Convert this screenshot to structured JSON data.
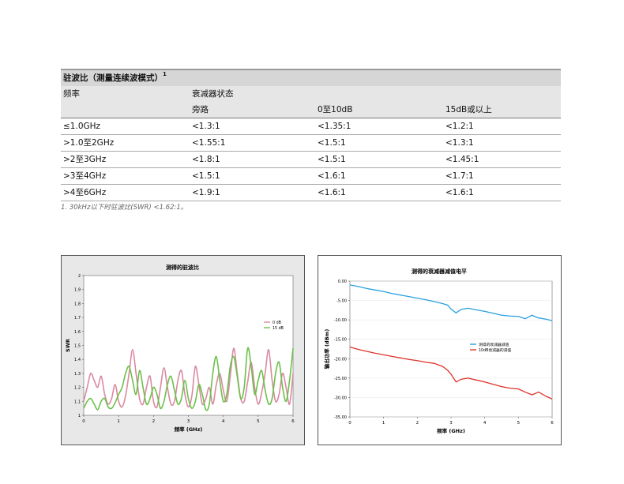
{
  "table": {
    "title": "驻波比（测量连续波模式）",
    "title_sup": "1",
    "header": [
      "频率",
      "衰减器状态",
      "",
      ""
    ],
    "subheader": [
      "",
      "旁路",
      "0至10dB",
      "15dB或以上"
    ],
    "rows": [
      [
        "≤1.0GHz",
        "<1.3:1",
        "<1.35:1",
        "<1.2:1"
      ],
      [
        ">1.0至2GHz",
        "<1.55:1",
        "<1.5:1",
        "<1.3:1"
      ],
      [
        ">2至3GHz",
        "<1.8:1",
        "<1.5:1",
        "<1.45:1"
      ],
      [
        ">3至4GHz",
        "<1.5:1",
        "<1.6:1",
        "<1.7:1"
      ],
      [
        ">4至6GHz",
        "<1.9:1",
        "<1.6:1",
        "<1.6:1"
      ]
    ],
    "footnote": "1. 30kHz以下时驻波比(SWR) <1.62:1。"
  },
  "chart_data": [
    {
      "type": "line",
      "title": "测得的驻波比",
      "xlabel": "频率 (GHz)",
      "ylabel": "SWR",
      "xlim": [
        0,
        6
      ],
      "ylim": [
        1,
        2
      ],
      "xticks": [
        "0",
        "1",
        "2",
        "3",
        "4",
        "5",
        "6"
      ],
      "yticks": [
        "1",
        "1.1",
        "1.2",
        "1.3",
        "1.4",
        "1.5",
        "1.6",
        "1.7",
        "1.8",
        "1.9",
        "2"
      ],
      "legend": "right",
      "series": [
        {
          "name": "0 dB",
          "color": "#d98aa0",
          "x": [
            0,
            0.1,
            0.2,
            0.3,
            0.4,
            0.5,
            0.6,
            0.7,
            0.8,
            0.9,
            1.0,
            1.1,
            1.2,
            1.3,
            1.4,
            1.5,
            1.6,
            1.7,
            1.8,
            1.9,
            2.0,
            2.1,
            2.2,
            2.3,
            2.4,
            2.5,
            2.6,
            2.7,
            2.8,
            2.9,
            3.0,
            3.1,
            3.2,
            3.3,
            3.4,
            3.5,
            3.6,
            3.7,
            3.8,
            3.9,
            4.0,
            4.1,
            4.2,
            4.3,
            4.4,
            4.5,
            4.6,
            4.7,
            4.8,
            4.9,
            5.0,
            5.1,
            5.2,
            5.3,
            5.4,
            5.5,
            5.6,
            5.7,
            5.8,
            5.9,
            6.0
          ],
          "y": [
            1.1,
            1.2,
            1.3,
            1.25,
            1.2,
            1.28,
            1.15,
            1.08,
            1.12,
            1.22,
            1.1,
            1.06,
            1.14,
            1.3,
            1.47,
            1.3,
            1.12,
            1.08,
            1.2,
            1.28,
            1.1,
            1.06,
            1.2,
            1.34,
            1.2,
            1.08,
            1.1,
            1.25,
            1.32,
            1.15,
            1.06,
            1.14,
            1.35,
            1.22,
            1.08,
            1.12,
            1.2,
            1.08,
            1.22,
            1.3,
            1.18,
            1.1,
            1.28,
            1.48,
            1.3,
            1.12,
            1.1,
            1.24,
            1.38,
            1.2,
            1.08,
            1.16,
            1.3,
            1.47,
            1.25,
            1.1,
            1.15,
            1.3,
            1.2,
            1.08,
            1.3
          ]
        },
        {
          "name": "15 dB",
          "color": "#6cc04a",
          "x": [
            0,
            0.1,
            0.2,
            0.3,
            0.4,
            0.5,
            0.6,
            0.7,
            0.8,
            0.9,
            1.0,
            1.1,
            1.2,
            1.3,
            1.4,
            1.5,
            1.6,
            1.7,
            1.8,
            1.9,
            2.0,
            2.1,
            2.2,
            2.3,
            2.4,
            2.5,
            2.6,
            2.7,
            2.8,
            2.9,
            3.0,
            3.1,
            3.2,
            3.3,
            3.4,
            3.5,
            3.6,
            3.7,
            3.8,
            3.9,
            4.0,
            4.1,
            4.2,
            4.3,
            4.4,
            4.5,
            4.6,
            4.7,
            4.8,
            4.9,
            5.0,
            5.1,
            5.2,
            5.3,
            5.4,
            5.5,
            5.6,
            5.7,
            5.8,
            5.9,
            6.0
          ],
          "y": [
            1.05,
            1.1,
            1.12,
            1.08,
            1.04,
            1.1,
            1.12,
            1.06,
            1.05,
            1.09,
            1.15,
            1.2,
            1.3,
            1.35,
            1.25,
            1.15,
            1.32,
            1.2,
            1.08,
            1.12,
            1.2,
            1.15,
            1.05,
            1.1,
            1.22,
            1.28,
            1.18,
            1.08,
            1.12,
            1.25,
            1.12,
            1.05,
            1.1,
            1.22,
            1.15,
            1.04,
            1.08,
            1.3,
            1.42,
            1.25,
            1.1,
            1.15,
            1.35,
            1.42,
            1.28,
            1.12,
            1.2,
            1.48,
            1.35,
            1.15,
            1.25,
            1.32,
            1.18,
            1.08,
            1.12,
            1.3,
            1.38,
            1.2,
            1.1,
            1.25,
            1.48
          ]
        }
      ]
    },
    {
      "type": "line",
      "title": "测得的衰减器减值电平",
      "xlabel": "频率 (GHz)",
      "ylabel": "输出功率 (dBm)",
      "xlim": [
        0,
        6
      ],
      "ylim": [
        -35,
        0
      ],
      "xticks": [
        "0",
        "1",
        "2",
        "3",
        "4",
        "5",
        "6"
      ],
      "yticks": [
        "0.00",
        "-5.00",
        "-10.00",
        "-15.00",
        "-20.00",
        "-25.00",
        "-30.00",
        "-35.00"
      ],
      "legend": "right",
      "series": [
        {
          "name": "测得的衰减器减值",
          "color": "#2a9fe0",
          "x": [
            0,
            0.25,
            0.5,
            0.75,
            1.0,
            1.25,
            1.5,
            1.75,
            2.0,
            2.25,
            2.5,
            2.75,
            2.9,
            3.0,
            3.15,
            3.3,
            3.5,
            3.75,
            4.0,
            4.25,
            4.5,
            4.75,
            5.0,
            5.2,
            5.4,
            5.6,
            5.8,
            6.0
          ],
          "y": [
            -1.0,
            -1.4,
            -1.9,
            -2.3,
            -2.7,
            -3.2,
            -3.6,
            -4.0,
            -4.4,
            -4.8,
            -5.3,
            -5.8,
            -6.2,
            -7.2,
            -8.2,
            -7.3,
            -7.0,
            -7.4,
            -7.8,
            -8.3,
            -8.8,
            -9.0,
            -9.1,
            -9.7,
            -8.8,
            -9.5,
            -9.8,
            -10.2
          ]
        },
        {
          "name": "10dB衰减器的减值",
          "color": "#e0322a",
          "x": [
            0,
            0.25,
            0.5,
            0.75,
            1.0,
            1.25,
            1.5,
            1.75,
            2.0,
            2.25,
            2.5,
            2.75,
            2.9,
            3.0,
            3.15,
            3.3,
            3.5,
            3.75,
            4.0,
            4.25,
            4.5,
            4.75,
            5.0,
            5.2,
            5.4,
            5.6,
            5.8,
            6.0
          ],
          "y": [
            -17.0,
            -17.6,
            -18.1,
            -18.6,
            -19.0,
            -19.4,
            -19.8,
            -20.2,
            -20.5,
            -20.9,
            -21.2,
            -22.0,
            -23.0,
            -24.0,
            -26.0,
            -25.3,
            -25.0,
            -25.5,
            -26.0,
            -26.6,
            -27.2,
            -27.6,
            -27.8,
            -28.6,
            -29.3,
            -28.6,
            -29.6,
            -30.4
          ]
        }
      ]
    }
  ]
}
